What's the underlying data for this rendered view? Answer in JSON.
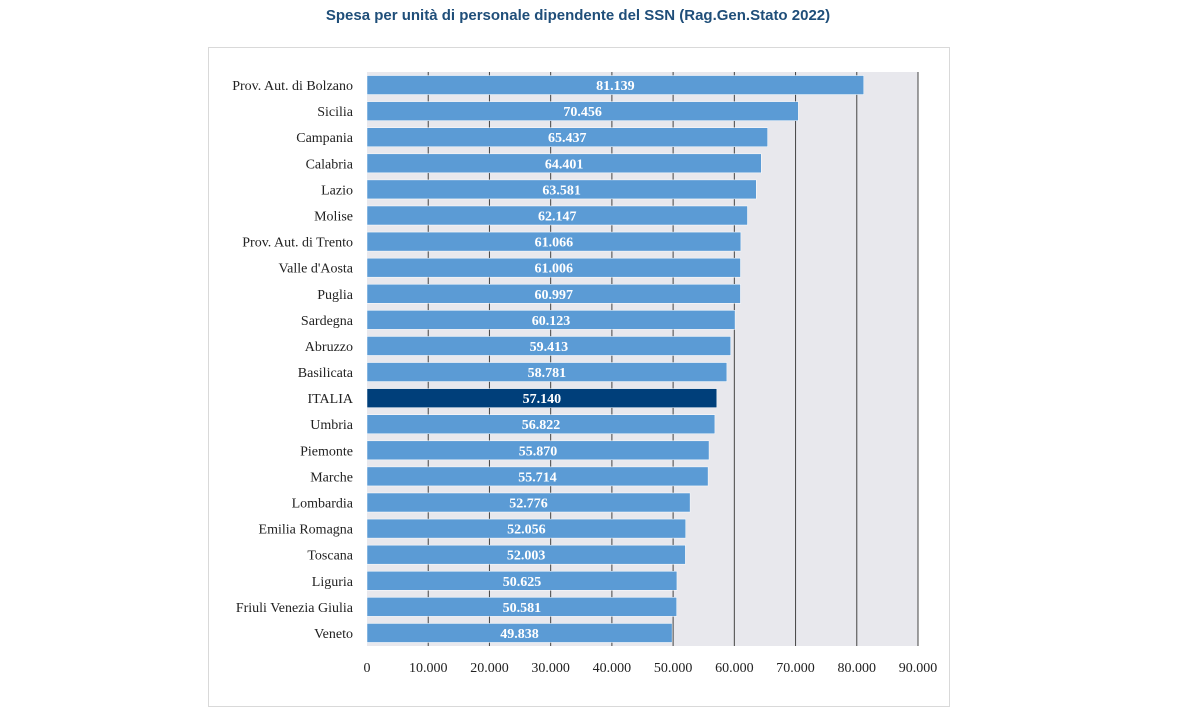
{
  "chart_data": {
    "type": "bar",
    "orientation": "horizontal",
    "title": "Spesa per unità di personale dipendente del SSN (Rag.Gen.Stato 2022)",
    "categories": [
      "Prov. Aut. di Bolzano",
      "Sicilia",
      "Campania",
      "Calabria",
      "Lazio",
      "Molise",
      "Prov. Aut. di Trento",
      "Valle d'Aosta",
      "Puglia",
      "Sardegna",
      "Abruzzo",
      "Basilicata",
      "ITALIA",
      "Umbria",
      "Piemonte",
      "Marche",
      "Lombardia",
      "Emilia Romagna",
      "Toscana",
      "Liguria",
      "Friuli Venezia Giulia",
      "Veneto"
    ],
    "values": [
      81139,
      70456,
      65437,
      64401,
      63581,
      62147,
      61066,
      61006,
      60997,
      60123,
      59413,
      58781,
      57140,
      56822,
      55870,
      55714,
      52776,
      52056,
      52003,
      50625,
      50581,
      49838
    ],
    "value_labels": [
      "81.139",
      "70.456",
      "65.437",
      "64.401",
      "63.581",
      "62.147",
      "61.066",
      "61.006",
      "60.997",
      "60.123",
      "59.413",
      "58.781",
      "57.140",
      "56.822",
      "55.870",
      "55.714",
      "52.776",
      "52.056",
      "52.003",
      "50.625",
      "50.581",
      "49.838"
    ],
    "highlight": "ITALIA",
    "xlim": [
      0,
      90000
    ],
    "xticks": [
      0,
      10000,
      20000,
      30000,
      40000,
      50000,
      60000,
      70000,
      80000,
      90000
    ],
    "xtick_labels": [
      "0",
      "10.000",
      "20.000",
      "30.000",
      "40.000",
      "50.000",
      "60.000",
      "70.000",
      "80.000",
      "90.000"
    ],
    "grid": true,
    "colors": {
      "bar": "#5b9bd5",
      "highlight": "#003f7a",
      "plot_bg": "#e8e8ed",
      "grid": "#444444",
      "title": "#1f4e79"
    }
  }
}
